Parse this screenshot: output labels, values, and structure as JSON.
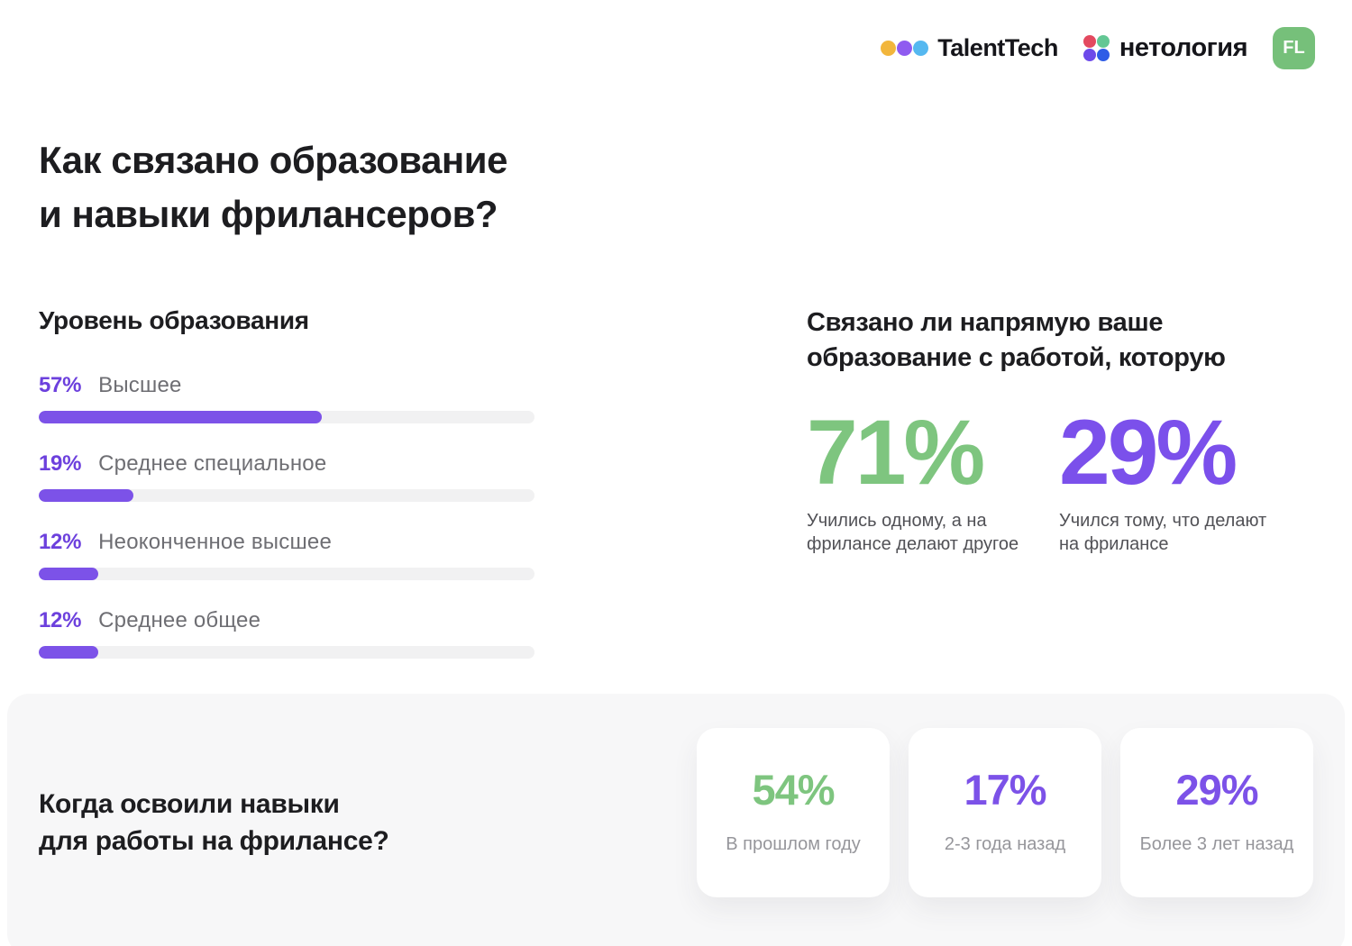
{
  "header": {
    "talenttech": {
      "label": "TalentTech",
      "dot_colors": [
        "#F2B63C",
        "#8F5BF0",
        "#55B8F0"
      ]
    },
    "netology": {
      "label": "нетология",
      "dot_colors": [
        "#E3495F",
        "#63C794",
        "#6D4AEA",
        "#2E5CE6"
      ]
    },
    "fl_badge": {
      "label": "FL",
      "color": "#76C07A"
    }
  },
  "title": {
    "line1": "Как связано образование",
    "line2": "и навыки фрилансеров?"
  },
  "education": {
    "heading": "Уровень образования",
    "bar_color": "#7C52E8",
    "track_color": "#F1F1F2",
    "items": [
      {
        "pct": "57%",
        "value": 57,
        "label": "Высшее"
      },
      {
        "pct": "19%",
        "value": 19,
        "label": "Среднее специальное"
      },
      {
        "pct": "12%",
        "value": 12,
        "label": "Неоконченное высшее"
      },
      {
        "pct": "12%",
        "value": 12,
        "label": "Среднее общее"
      }
    ]
  },
  "relation": {
    "heading_line1": "Связано ли напрямую ваше",
    "heading_line2": "образование с работой, которую",
    "stats": [
      {
        "pct": "71%",
        "color": "#7EC57F",
        "caption": "Учились одному, а на фрилансе делают другое"
      },
      {
        "pct": "29%",
        "color": "#7B50EB",
        "caption": "Учился тому, что делают на фрилансе"
      }
    ]
  },
  "skills_when": {
    "heading_line1": "Когда освоили навыки",
    "heading_line2": "для работы на фрилансе?",
    "cards": [
      {
        "pct": "54%",
        "color": "#7EC57F",
        "label": "В прошлом году"
      },
      {
        "pct": "17%",
        "color": "#7C52E8",
        "label": "2-3 года назад"
      },
      {
        "pct": "29%",
        "color": "#7C52E8",
        "label": "Более 3 лет назад"
      }
    ]
  },
  "chart_data": [
    {
      "type": "bar",
      "title": "Уровень образования",
      "orientation": "horizontal",
      "categories": [
        "Высшее",
        "Среднее специальное",
        "Неоконченное высшее",
        "Среднее общее"
      ],
      "values": [
        57,
        19,
        12,
        12
      ],
      "unit": "%",
      "xlim": [
        0,
        100
      ],
      "bar_color": "#7C52E8",
      "grid": false,
      "legend": false
    },
    {
      "type": "bar",
      "title": "Связано ли напрямую ваше образование с работой, которую",
      "categories": [
        "Учились одному, а на фрилансе делают другое",
        "Учился тому, что делают на фрилансе"
      ],
      "values": [
        71,
        29
      ],
      "unit": "%",
      "colors": [
        "#7EC57F",
        "#7B50EB"
      ],
      "style": "big-number",
      "grid": false,
      "legend": false
    },
    {
      "type": "bar",
      "title": "Когда освоили навыки для работы на фрилансе?",
      "categories": [
        "В прошлом году",
        "2-3 года назад",
        "Более 3 лет назад"
      ],
      "values": [
        54,
        17,
        29
      ],
      "unit": "%",
      "colors": [
        "#7EC57F",
        "#7C52E8",
        "#7C52E8"
      ],
      "style": "big-number-cards",
      "grid": false,
      "legend": false
    }
  ]
}
